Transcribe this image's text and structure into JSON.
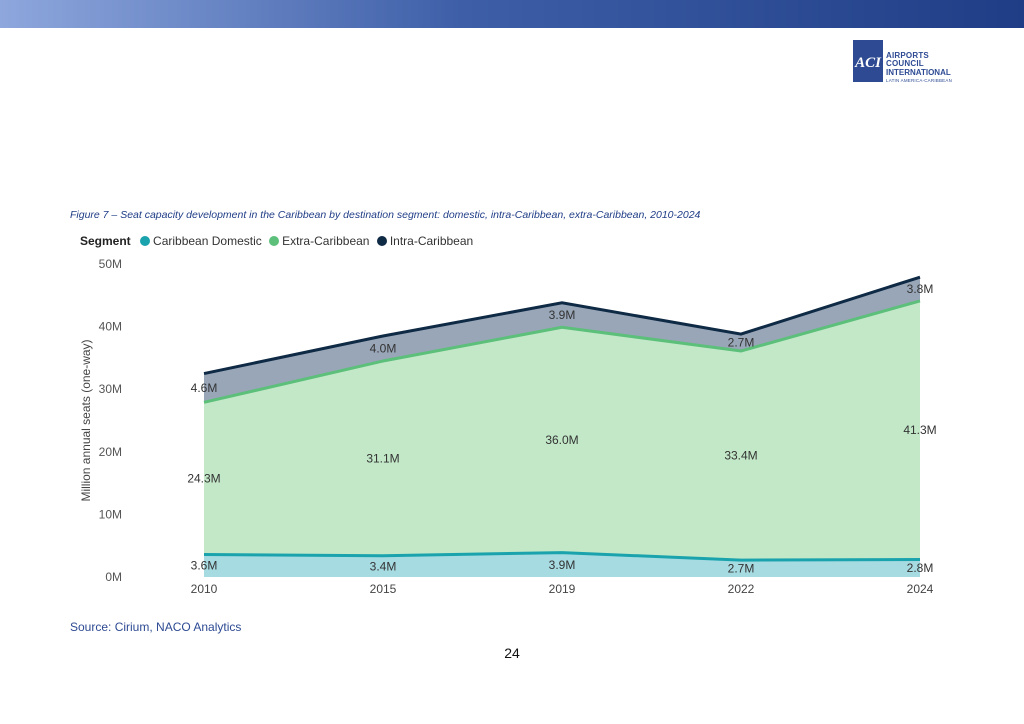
{
  "logo": {
    "mark": "ACI",
    "line1": "AIRPORTS COUNCIL",
    "line2": "INTERNATIONAL",
    "line3": "LATIN AMERICA-CARIBBEAN"
  },
  "figure_caption": "Figure 7 – Seat capacity development in the Caribbean by destination segment: domestic, intra-Caribbean, extra-Caribbean, 2010-2024",
  "source": "Source: Cirium, NACO Analytics",
  "page_number": "24",
  "colors": {
    "domestic_fill": "#a7dbe2",
    "domestic_line": "#1aa3ad",
    "extra_fill": "#c2e8c8",
    "extra_line": "#5cbf7a",
    "intra_fill": "#98a6b8",
    "intra_line": "#0f2a45"
  },
  "chart_data": {
    "type": "area",
    "stacked": true,
    "legend_title": "Segment",
    "legend_position": "top-left",
    "x": [
      "2010",
      "2015",
      "2019",
      "2022",
      "2024"
    ],
    "ylabel": "Million annual seats (one-way)",
    "ylim": [
      0,
      50
    ],
    "yticks": [
      0,
      10,
      20,
      30,
      40,
      50
    ],
    "ytick_labels": [
      "0M",
      "10M",
      "20M",
      "30M",
      "40M",
      "50M"
    ],
    "series": [
      {
        "name": "Caribbean Domestic",
        "values": [
          3.6,
          3.4,
          3.9,
          2.7,
          2.8
        ],
        "labels": [
          "3.6M",
          "3.4M",
          "3.9M",
          "2.7M",
          "2.8M"
        ]
      },
      {
        "name": "Extra-Caribbean",
        "values": [
          24.3,
          31.1,
          36.0,
          33.4,
          41.3
        ],
        "labels": [
          "24.3M",
          "31.1M",
          "36.0M",
          "33.4M",
          "41.3M"
        ]
      },
      {
        "name": "Intra-Caribbean",
        "values": [
          4.6,
          4.0,
          3.9,
          2.7,
          3.8
        ],
        "labels": [
          "4.6M",
          "4.0M",
          "3.9M",
          "2.7M",
          "3.8M"
        ]
      }
    ]
  }
}
